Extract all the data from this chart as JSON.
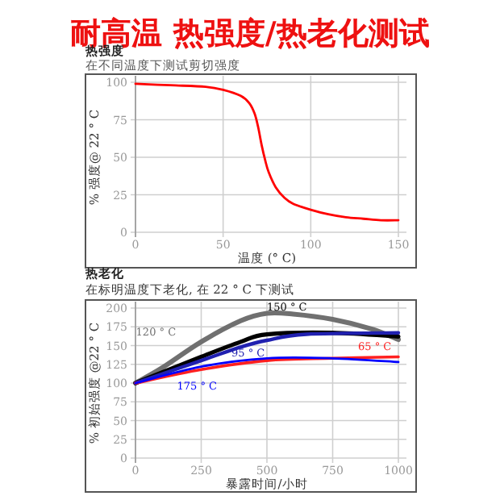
{
  "chart_data": [
    {
      "type": "line",
      "title": "耐高温 热强度/热老化测试",
      "subtitle": "热强度",
      "annotations": [
        "在不同温度下测试剪切强度"
      ],
      "xlabel": "温度 (° C)",
      "ylabel": "% 强度@ 22 ° C",
      "xlim": [
        0,
        150
      ],
      "ylim": [
        0,
        100
      ],
      "xticks": [
        0,
        50,
        100,
        150
      ],
      "yticks": [
        0,
        25,
        50,
        75,
        100
      ],
      "grid": true,
      "marker": "none",
      "line_style": "solid",
      "x": [
        0,
        20,
        40,
        50,
        60,
        65,
        68,
        70,
        72,
        74,
        76,
        80,
        85,
        90,
        100,
        110,
        120,
        130,
        140,
        150
      ],
      "series": [
        {
          "color": "#ff0000",
          "values": [
            99,
            98,
            97,
            95,
            91,
            86,
            79,
            70,
            58,
            48,
            40,
            30,
            23,
            19,
            15,
            12,
            10,
            9,
            8,
            8
          ]
        }
      ]
    },
    {
      "type": "line",
      "title": "热老化",
      "subtitle": "在标明温度下老化,      在 22 ° C 下测试",
      "xlabel": "暴露时间/小时",
      "ylabel": "% 初始强度 @22 ° C",
      "xlim": [
        0,
        1000
      ],
      "ylim": [
        0,
        200
      ],
      "xticks": [
        0,
        250,
        500,
        750,
        1000
      ],
      "yticks": [
        0,
        25,
        50,
        75,
        100,
        125,
        150,
        175,
        200
      ],
      "grid": true,
      "marker": "none",
      "line_style": "solid",
      "series": [
        {
          "name": "120 ° C",
          "color": "#707070",
          "x": [
            0,
            100,
            250,
            400,
            500,
            600,
            750,
            900,
            1000
          ],
          "values": [
            100,
            120,
            155,
            183,
            193,
            192,
            185,
            172,
            158
          ]
        },
        {
          "name": "150 ° C",
          "color": "#000000",
          "x": [
            0,
            250,
            400,
            500,
            750,
            1000
          ],
          "values": [
            100,
            135,
            155,
            165,
            167,
            162
          ]
        },
        {
          "name": "95 ° C",
          "color": "#2020b0",
          "x": [
            0,
            250,
            400,
            500,
            650,
            1000
          ],
          "values": [
            100,
            130,
            148,
            157,
            165,
            167
          ]
        },
        {
          "name": "65 ° C",
          "color": "#ff2020",
          "x": [
            0,
            250,
            500,
            750,
            1000
          ],
          "values": [
            100,
            118,
            130,
            133,
            135
          ]
        },
        {
          "name": "175 ° C",
          "color": "#0000ff",
          "x": [
            0,
            250,
            500,
            750,
            1000
          ],
          "values": [
            100,
            122,
            133,
            133,
            128
          ]
        }
      ]
    }
  ]
}
